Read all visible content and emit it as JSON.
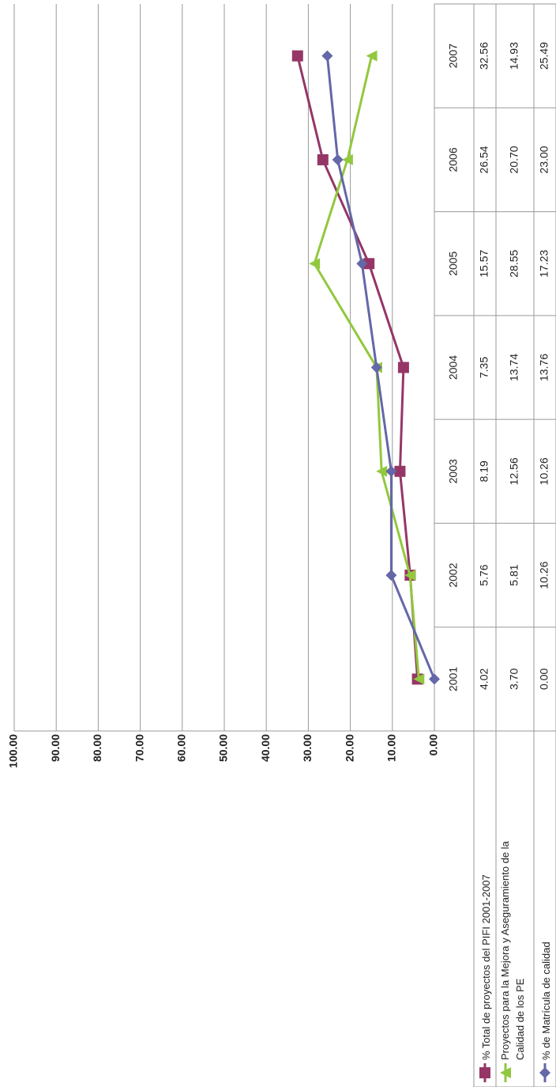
{
  "chart_data": {
    "type": "line",
    "categories": [
      "2001",
      "2002",
      "2003",
      "2004",
      "2005",
      "2006",
      "2007"
    ],
    "series": [
      {
        "name": "% Total de proyectos del  PIFI 2001-2007",
        "color": "#953667",
        "marker": "square",
        "values": [
          4.02,
          5.76,
          8.19,
          7.35,
          15.57,
          26.54,
          32.56
        ],
        "value_labels": [
          "4.02",
          "5.76",
          "8.19",
          "7.35",
          "15.57",
          "26.54",
          "32.56"
        ]
      },
      {
        "name": "Proyectos para la Mejora y Aseguramiento de la Calidad de los PE",
        "color": "#92c83e",
        "marker": "triangle",
        "values": [
          3.7,
          5.81,
          12.56,
          13.74,
          28.55,
          20.7,
          14.93
        ],
        "value_labels": [
          "3.70",
          "5.81",
          "12.56",
          "13.74",
          "28.55",
          "20.70",
          "14.93"
        ]
      },
      {
        "name": "% de Matrícula de calidad",
        "color": "#6467a8",
        "marker": "diamond",
        "values": [
          0,
          10.26,
          10.26,
          13.76,
          17.23,
          23.0,
          25.49
        ],
        "value_labels": [
          "0.00",
          "10.26",
          "10.26",
          "13.76",
          "17.23",
          "23.00",
          "25.49"
        ]
      }
    ],
    "ylim": [
      0,
      100
    ],
    "yticks": [
      {
        "value": 0,
        "label": "0.00"
      },
      {
        "value": 10,
        "label": "10.00"
      },
      {
        "value": 20,
        "label": "20.00"
      },
      {
        "value": 30,
        "label": "30.00"
      },
      {
        "value": 40,
        "label": "40.00"
      },
      {
        "value": 50,
        "label": "50.00"
      },
      {
        "value": 60,
        "label": "60.00"
      },
      {
        "value": 70,
        "label": "70.00"
      },
      {
        "value": 80,
        "label": "80.00"
      },
      {
        "value": 90,
        "label": "90.00"
      },
      {
        "value": 100,
        "label": "100.00"
      }
    ],
    "grid": true,
    "rotation": -90
  }
}
